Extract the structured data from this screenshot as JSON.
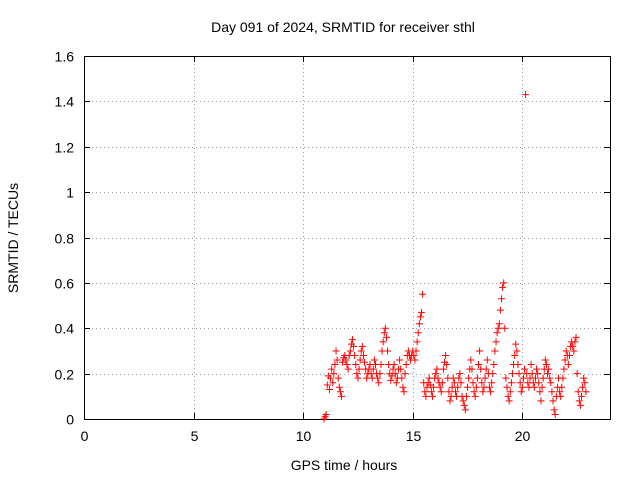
{
  "chart_data": {
    "type": "scatter",
    "title": "Day 091 of 2024, SRMTID for receiver sthl",
    "xlabel": "GPS time / hours",
    "ylabel": "SRMTID / TECUs",
    "xlim": [
      0,
      24
    ],
    "ylim": [
      0,
      1.6
    ],
    "xticks": [
      0,
      5,
      10,
      15,
      20
    ],
    "yticks": [
      0,
      0.2,
      0.4,
      0.6,
      0.8,
      1,
      1.2,
      1.4,
      1.6
    ],
    "xtick_labels": [
      "0",
      "5",
      "10",
      "15",
      "20"
    ],
    "ytick_labels": [
      "0",
      "0.2",
      "0.4",
      "0.6",
      "0.8",
      "1",
      "1.2",
      "1.4",
      "1.6"
    ],
    "grid": true,
    "marker": "+",
    "marker_color": "#ff0000",
    "series": [
      {
        "name": "sthl",
        "points": [
          [
            10.95,
            0.0
          ],
          [
            11.0,
            0.01
          ],
          [
            11.05,
            0.02
          ],
          [
            11.1,
            0.15
          ],
          [
            11.15,
            0.19
          ],
          [
            11.2,
            0.13
          ],
          [
            11.25,
            0.18
          ],
          [
            11.3,
            0.22
          ],
          [
            11.35,
            0.16
          ],
          [
            11.4,
            0.2
          ],
          [
            11.45,
            0.24
          ],
          [
            11.5,
            0.3
          ],
          [
            11.55,
            0.26
          ],
          [
            11.6,
            0.18
          ],
          [
            11.65,
            0.14
          ],
          [
            11.7,
            0.12
          ],
          [
            11.75,
            0.1
          ],
          [
            11.8,
            0.25
          ],
          [
            11.85,
            0.27
          ],
          [
            11.9,
            0.28
          ],
          [
            11.95,
            0.26
          ],
          [
            12.0,
            0.24
          ],
          [
            12.05,
            0.22
          ],
          [
            12.1,
            0.28
          ],
          [
            12.15,
            0.3
          ],
          [
            12.2,
            0.33
          ],
          [
            12.25,
            0.35
          ],
          [
            12.3,
            0.32
          ],
          [
            12.35,
            0.28
          ],
          [
            12.4,
            0.24
          ],
          [
            12.45,
            0.2
          ],
          [
            12.5,
            0.18
          ],
          [
            12.55,
            0.22
          ],
          [
            12.6,
            0.26
          ],
          [
            12.65,
            0.3
          ],
          [
            12.7,
            0.32
          ],
          [
            12.75,
            0.28
          ],
          [
            12.8,
            0.25
          ],
          [
            12.85,
            0.22
          ],
          [
            12.9,
            0.18
          ],
          [
            12.95,
            0.2
          ],
          [
            13.0,
            0.22
          ],
          [
            13.05,
            0.24
          ],
          [
            13.1,
            0.2
          ],
          [
            13.15,
            0.18
          ],
          [
            13.2,
            0.22
          ],
          [
            13.25,
            0.26
          ],
          [
            13.3,
            0.24
          ],
          [
            13.35,
            0.2
          ],
          [
            13.4,
            0.18
          ],
          [
            13.45,
            0.16
          ],
          [
            13.5,
            0.2
          ],
          [
            13.55,
            0.24
          ],
          [
            13.6,
            0.3
          ],
          [
            13.65,
            0.34
          ],
          [
            13.7,
            0.38
          ],
          [
            13.75,
            0.4
          ],
          [
            13.8,
            0.36
          ],
          [
            13.85,
            0.3
          ],
          [
            13.9,
            0.24
          ],
          [
            13.95,
            0.2
          ],
          [
            14.0,
            0.17
          ],
          [
            14.05,
            0.19
          ],
          [
            14.1,
            0.22
          ],
          [
            14.15,
            0.24
          ],
          [
            14.2,
            0.2
          ],
          [
            14.25,
            0.16
          ],
          [
            14.3,
            0.18
          ],
          [
            14.35,
            0.22
          ],
          [
            14.4,
            0.26
          ],
          [
            14.45,
            0.22
          ],
          [
            14.5,
            0.18
          ],
          [
            14.55,
            0.14
          ],
          [
            14.6,
            0.12
          ],
          [
            14.65,
            0.2
          ],
          [
            14.7,
            0.24
          ],
          [
            14.75,
            0.28
          ],
          [
            14.8,
            0.3
          ],
          [
            14.85,
            0.28
          ],
          [
            14.9,
            0.26
          ],
          [
            14.95,
            0.28
          ],
          [
            15.0,
            0.3
          ],
          [
            15.05,
            0.28
          ],
          [
            15.1,
            0.26
          ],
          [
            15.15,
            0.3
          ],
          [
            15.2,
            0.34
          ],
          [
            15.25,
            0.38
          ],
          [
            15.3,
            0.42
          ],
          [
            15.35,
            0.45
          ],
          [
            15.4,
            0.47
          ],
          [
            15.45,
            0.55
          ],
          [
            15.5,
            0.16
          ],
          [
            15.55,
            0.12
          ],
          [
            15.6,
            0.1
          ],
          [
            15.65,
            0.14
          ],
          [
            15.7,
            0.16
          ],
          [
            15.75,
            0.18
          ],
          [
            15.8,
            0.15
          ],
          [
            15.85,
            0.12
          ],
          [
            15.9,
            0.1
          ],
          [
            15.95,
            0.14
          ],
          [
            16.0,
            0.18
          ],
          [
            16.05,
            0.2
          ],
          [
            16.1,
            0.22
          ],
          [
            16.15,
            0.18
          ],
          [
            16.2,
            0.16
          ],
          [
            16.25,
            0.14
          ],
          [
            16.3,
            0.12
          ],
          [
            16.35,
            0.16
          ],
          [
            16.4,
            0.22
          ],
          [
            16.45,
            0.25
          ],
          [
            16.5,
            0.28
          ],
          [
            16.55,
            0.24
          ],
          [
            16.6,
            0.18
          ],
          [
            16.65,
            0.12
          ],
          [
            16.7,
            0.08
          ],
          [
            16.75,
            0.1
          ],
          [
            16.8,
            0.14
          ],
          [
            16.85,
            0.18
          ],
          [
            16.9,
            0.16
          ],
          [
            16.95,
            0.12
          ],
          [
            17.0,
            0.1
          ],
          [
            17.05,
            0.14
          ],
          [
            17.1,
            0.18
          ],
          [
            17.15,
            0.2
          ],
          [
            17.2,
            0.16
          ],
          [
            17.25,
            0.1
          ],
          [
            17.3,
            0.08
          ],
          [
            17.35,
            0.06
          ],
          [
            17.4,
            0.04
          ],
          [
            17.45,
            0.1
          ],
          [
            17.5,
            0.14
          ],
          [
            17.55,
            0.18
          ],
          [
            17.6,
            0.22
          ],
          [
            17.65,
            0.26
          ],
          [
            17.7,
            0.22
          ],
          [
            17.75,
            0.16
          ],
          [
            17.8,
            0.12
          ],
          [
            17.85,
            0.1
          ],
          [
            17.9,
            0.14
          ],
          [
            17.95,
            0.18
          ],
          [
            18.0,
            0.24
          ],
          [
            18.05,
            0.3
          ],
          [
            18.1,
            0.22
          ],
          [
            18.15,
            0.16
          ],
          [
            18.2,
            0.12
          ],
          [
            18.25,
            0.14
          ],
          [
            18.3,
            0.18
          ],
          [
            18.35,
            0.22
          ],
          [
            18.4,
            0.26
          ],
          [
            18.45,
            0.2
          ],
          [
            18.5,
            0.14
          ],
          [
            18.55,
            0.12
          ],
          [
            18.6,
            0.16
          ],
          [
            18.65,
            0.2
          ],
          [
            18.7,
            0.24
          ],
          [
            18.75,
            0.3
          ],
          [
            18.8,
            0.34
          ],
          [
            18.85,
            0.38
          ],
          [
            18.9,
            0.4
          ],
          [
            18.95,
            0.42
          ],
          [
            19.0,
            0.48
          ],
          [
            19.05,
            0.53
          ],
          [
            19.1,
            0.58
          ],
          [
            19.15,
            0.6
          ],
          [
            19.2,
            0.4
          ],
          [
            19.25,
            0.18
          ],
          [
            19.3,
            0.14
          ],
          [
            19.35,
            0.1
          ],
          [
            19.4,
            0.08
          ],
          [
            19.45,
            0.12
          ],
          [
            19.5,
            0.16
          ],
          [
            19.55,
            0.2
          ],
          [
            19.6,
            0.24
          ],
          [
            19.65,
            0.28
          ],
          [
            19.7,
            0.33
          ],
          [
            19.75,
            0.3
          ],
          [
            19.8,
            0.24
          ],
          [
            19.85,
            0.2
          ],
          [
            19.9,
            0.16
          ],
          [
            19.95,
            0.12
          ],
          [
            20.0,
            0.14
          ],
          [
            20.05,
            0.18
          ],
          [
            20.1,
            0.22
          ],
          [
            20.15,
            1.43
          ],
          [
            20.2,
            0.2
          ],
          [
            20.25,
            0.16
          ],
          [
            20.3,
            0.14
          ],
          [
            20.35,
            0.18
          ],
          [
            20.4,
            0.24
          ],
          [
            20.45,
            0.2
          ],
          [
            20.5,
            0.16
          ],
          [
            20.55,
            0.14
          ],
          [
            20.6,
            0.18
          ],
          [
            20.65,
            0.22
          ],
          [
            20.7,
            0.2
          ],
          [
            20.75,
            0.16
          ],
          [
            20.8,
            0.12
          ],
          [
            20.85,
            0.08
          ],
          [
            20.9,
            0.14
          ],
          [
            20.95,
            0.18
          ],
          [
            21.0,
            0.22
          ],
          [
            21.05,
            0.26
          ],
          [
            21.1,
            0.24
          ],
          [
            21.15,
            0.2
          ],
          [
            21.2,
            0.22
          ],
          [
            21.25,
            0.18
          ],
          [
            21.3,
            0.16
          ],
          [
            21.35,
            0.12
          ],
          [
            21.4,
            0.08
          ],
          [
            21.45,
            0.04
          ],
          [
            21.5,
            0.02
          ],
          [
            21.55,
            0.1
          ],
          [
            21.6,
            0.14
          ],
          [
            21.65,
            0.18
          ],
          [
            21.7,
            0.12
          ],
          [
            21.75,
            0.1
          ],
          [
            21.8,
            0.14
          ],
          [
            21.85,
            0.18
          ],
          [
            21.9,
            0.22
          ],
          [
            21.95,
            0.26
          ],
          [
            22.0,
            0.3
          ],
          [
            22.05,
            0.28
          ],
          [
            22.1,
            0.24
          ],
          [
            22.15,
            0.28
          ],
          [
            22.2,
            0.32
          ],
          [
            22.25,
            0.34
          ],
          [
            22.3,
            0.32
          ],
          [
            22.35,
            0.3
          ],
          [
            22.4,
            0.34
          ],
          [
            22.45,
            0.36
          ],
          [
            22.5,
            0.2
          ],
          [
            22.55,
            0.12
          ],
          [
            22.6,
            0.08
          ],
          [
            22.65,
            0.06
          ],
          [
            22.7,
            0.1
          ],
          [
            22.75,
            0.14
          ],
          [
            22.8,
            0.18
          ],
          [
            22.85,
            0.16
          ],
          [
            22.9,
            0.12
          ]
        ]
      }
    ]
  }
}
